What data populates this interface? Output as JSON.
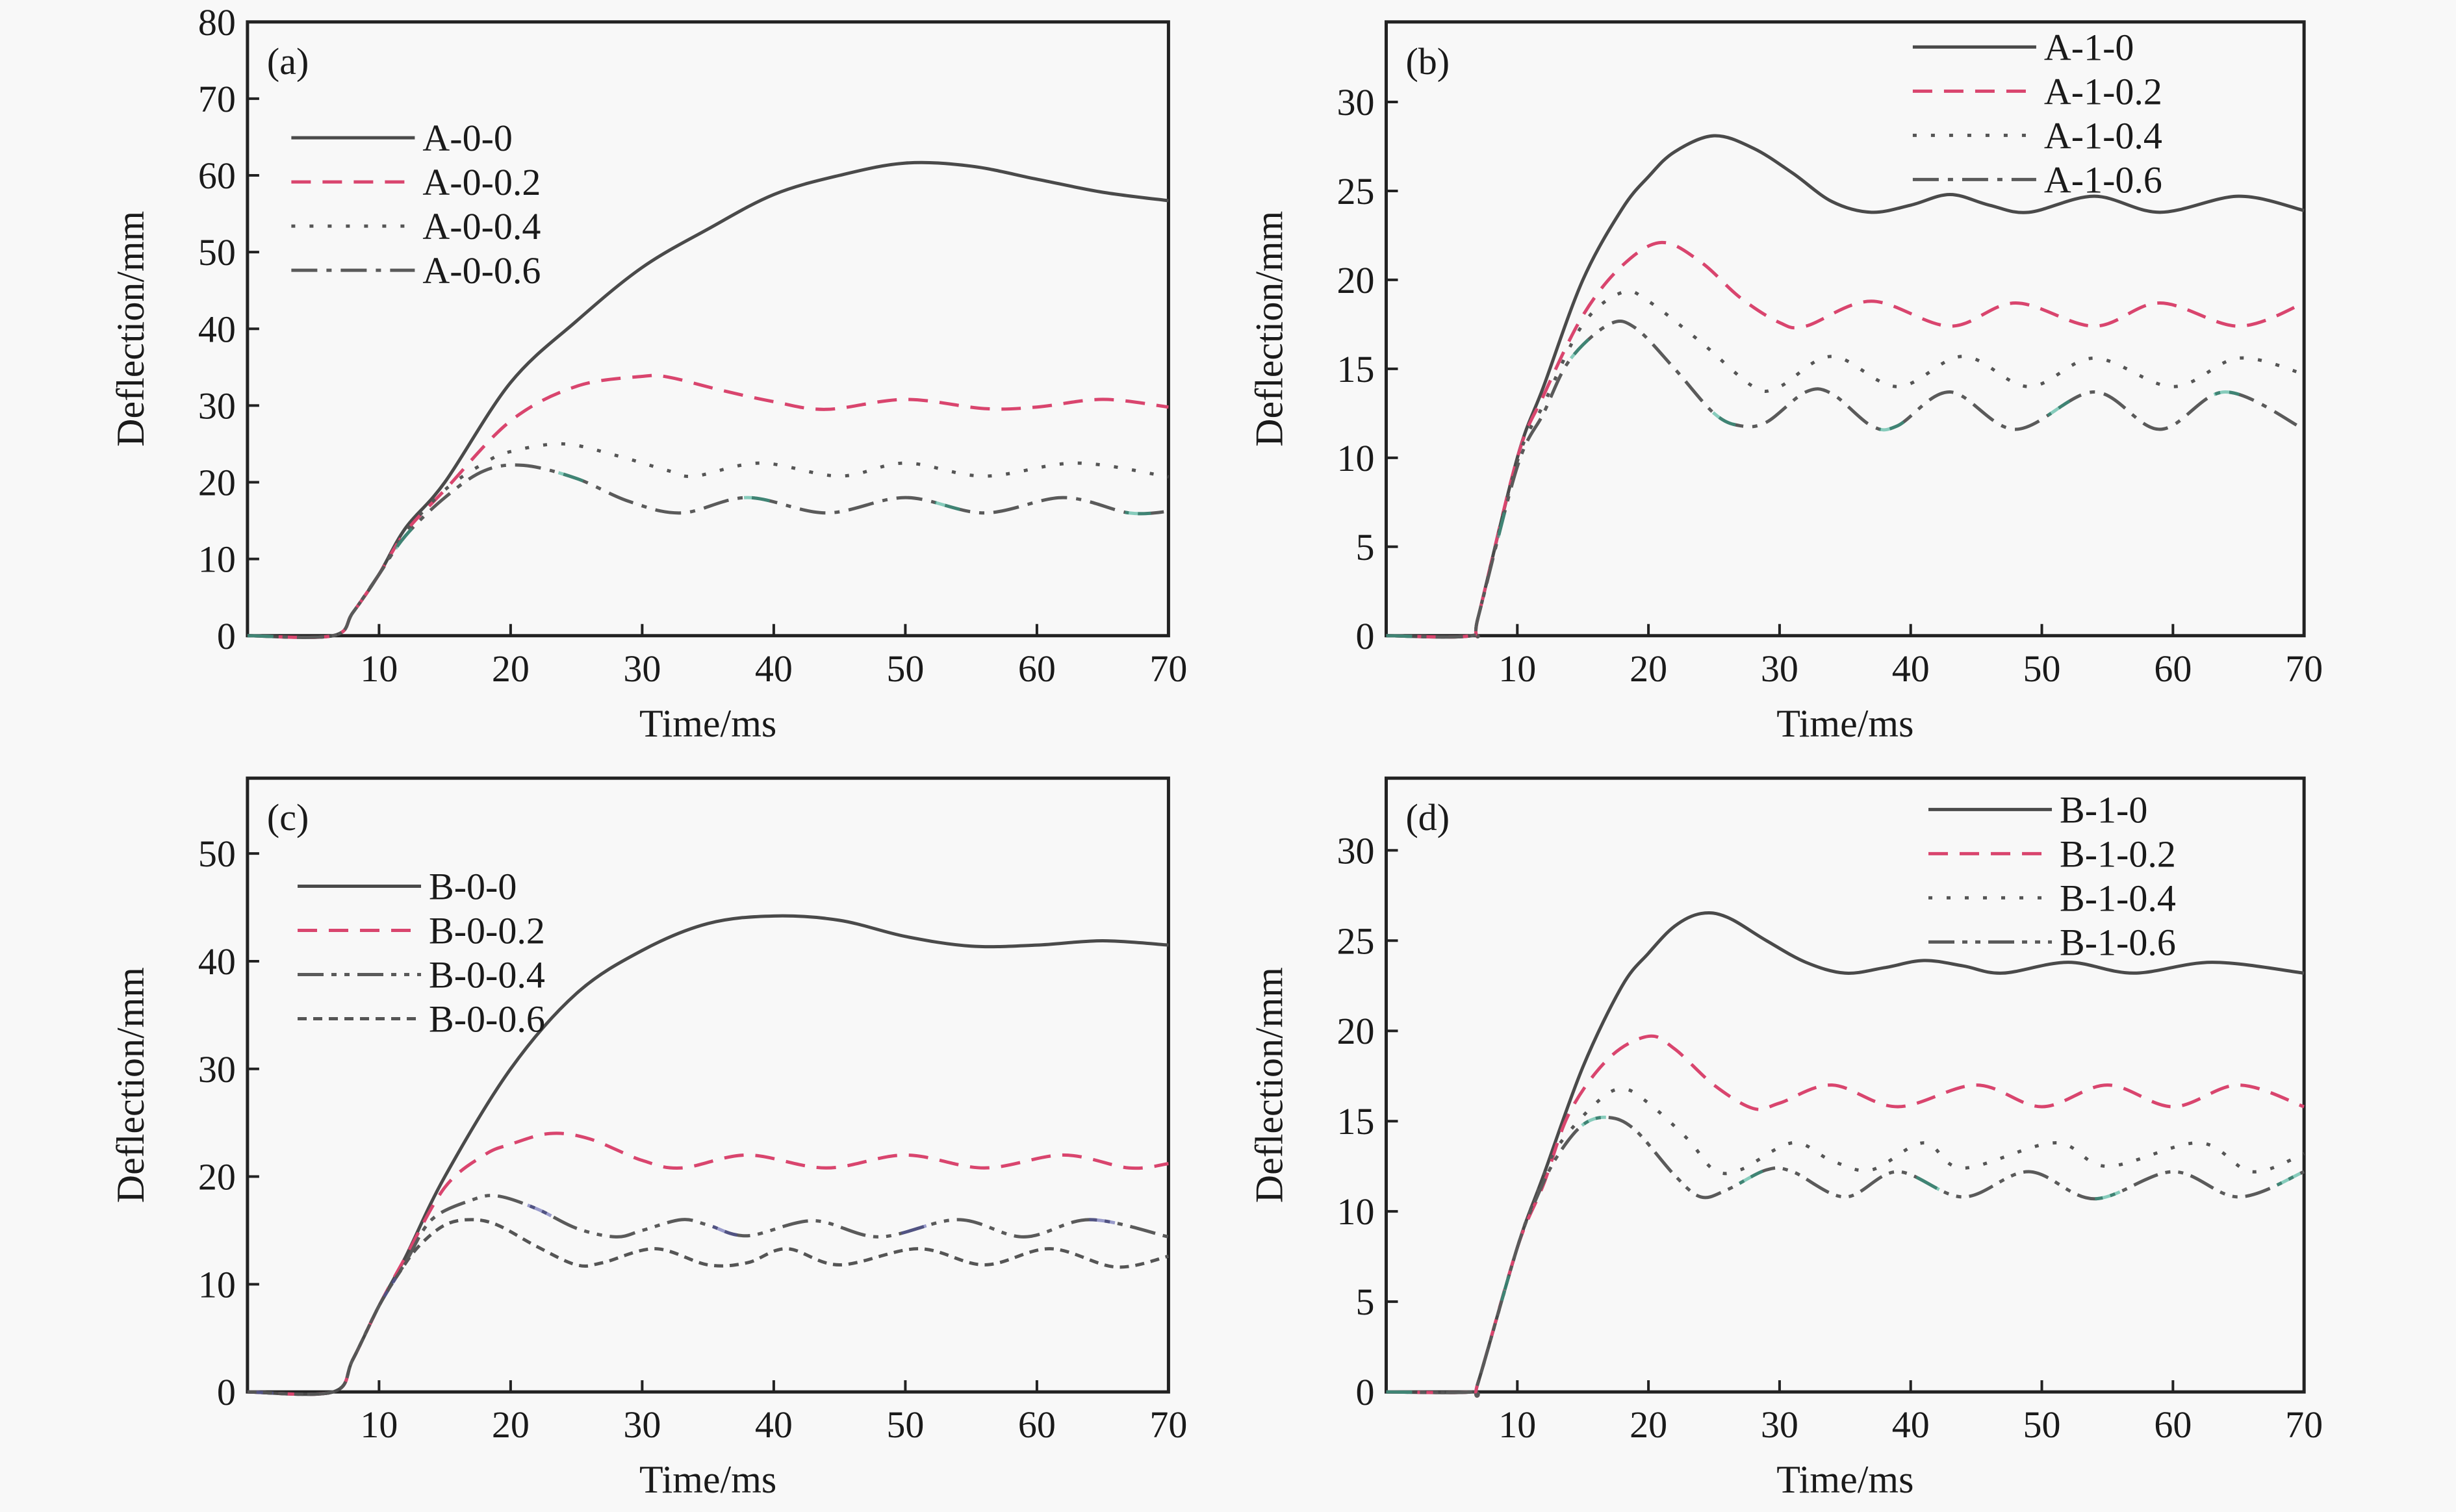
{
  "chart_data": [
    {
      "type": "line",
      "panel": "(a)",
      "xlabel": "Time/ms",
      "ylabel": "Deflection/mm",
      "xlim": [
        0,
        70
      ],
      "ylim": [
        0,
        80
      ],
      "xticks": [
        10,
        20,
        30,
        40,
        50,
        60,
        70
      ],
      "yticks": [
        0,
        10,
        20,
        30,
        40,
        50,
        60,
        70,
        80
      ],
      "grid": false,
      "legend_position": "top-left",
      "series": [
        {
          "name": "A-0-0",
          "style": "solid",
          "color": "#4a4a4a",
          "x": [
            0,
            6.5,
            8,
            10,
            12,
            15,
            20,
            25,
            30,
            35,
            40,
            45,
            50,
            55,
            60,
            65,
            70
          ],
          "y": [
            0,
            0,
            3,
            8,
            14,
            20,
            33,
            41,
            48,
            53,
            57.5,
            60,
            61.6,
            61.2,
            59.5,
            57.8,
            56.7
          ]
        },
        {
          "name": "A-0-0.2",
          "style": "dashed",
          "color": "#d9456e",
          "x": [
            0,
            6.5,
            8,
            10,
            12,
            15,
            20,
            25,
            30,
            32,
            36,
            40,
            44,
            50,
            56,
            60,
            65,
            70
          ],
          "y": [
            0,
            0,
            3,
            8,
            13.5,
            19,
            28,
            32.5,
            33.8,
            33.7,
            32,
            30.5,
            29.5,
            30.8,
            29.6,
            29.8,
            30.8,
            29.8
          ]
        },
        {
          "name": "A-0-0.4",
          "style": "dotted",
          "color": "#555555",
          "x": [
            0,
            6.5,
            8,
            10,
            12,
            15,
            18,
            20,
            24,
            28,
            32,
            34,
            39,
            45,
            50,
            56,
            63,
            70
          ],
          "y": [
            0,
            0,
            3,
            8,
            13.5,
            19,
            22.5,
            24,
            25,
            23.5,
            21.5,
            20.8,
            22.5,
            20.8,
            22.5,
            20.8,
            22.5,
            20.7
          ]
        },
        {
          "name": "A-0-0.6",
          "style": "dashdot",
          "color": "#5a5a5a",
          "accent_color": "#2aa88a",
          "x": [
            0,
            6.5,
            8,
            10,
            12,
            15,
            18,
            21,
            25,
            29,
            33,
            38,
            44,
            50,
            56,
            62,
            67,
            70
          ],
          "y": [
            0,
            0,
            3,
            8,
            13,
            18,
            21.5,
            22.2,
            20.5,
            17.5,
            16,
            18,
            16,
            18,
            16,
            18,
            16,
            16.2
          ]
        }
      ]
    },
    {
      "type": "line",
      "panel": "(b)",
      "xlabel": "Time/ms",
      "ylabel": "Deflection/mm",
      "xlim": [
        0,
        70
      ],
      "ylim": [
        0,
        34.5
      ],
      "xticks": [
        10,
        20,
        30,
        40,
        50,
        60,
        70
      ],
      "yticks": [
        0,
        5,
        10,
        15,
        20,
        25,
        30
      ],
      "grid": false,
      "legend_position": "top-right",
      "series": [
        {
          "name": "A-1-0",
          "style": "solid",
          "color": "#4a4a4a",
          "x": [
            0,
            6.5,
            7,
            10,
            12,
            15,
            18,
            20,
            22,
            25,
            28,
            31,
            34,
            37,
            40,
            43,
            46,
            49,
            54,
            59,
            65,
            70
          ],
          "y": [
            0,
            0,
            1,
            10,
            14,
            20,
            24,
            25.8,
            27.2,
            28.1,
            27.4,
            26,
            24.4,
            23.8,
            24.2,
            24.8,
            24.2,
            23.8,
            24.7,
            23.8,
            24.7,
            23.9
          ]
        },
        {
          "name": "A-1-0.2",
          "style": "dashed",
          "color": "#d9456e",
          "x": [
            0,
            6.5,
            7,
            10,
            12,
            15,
            18,
            21,
            24,
            27,
            30,
            32,
            37,
            43,
            48,
            54,
            59,
            65,
            70
          ],
          "y": [
            0,
            0,
            1,
            10,
            13.5,
            18,
            20.8,
            22.1,
            21,
            19,
            17.6,
            17.4,
            18.8,
            17.4,
            18.7,
            17.4,
            18.7,
            17.4,
            18.7
          ]
        },
        {
          "name": "A-1-0.4",
          "style": "dotted",
          "color": "#555555",
          "x": [
            0,
            6.5,
            7,
            10,
            12,
            15,
            18,
            20,
            24,
            28,
            30,
            34,
            39,
            44,
            49,
            54,
            60,
            65,
            70
          ],
          "y": [
            0,
            0,
            1,
            9.8,
            13,
            17.5,
            19.3,
            18.8,
            16.5,
            14,
            14,
            15.7,
            14,
            15.7,
            14,
            15.6,
            14,
            15.6,
            14.7
          ]
        },
        {
          "name": "A-1-0.6",
          "style": "dashdot",
          "color": "#5a5a5a",
          "accent_color": "#2aa88a",
          "x": [
            0,
            6.5,
            7,
            10,
            12,
            14,
            17,
            19,
            22,
            25,
            27,
            29,
            32,
            34,
            37,
            39,
            43,
            48,
            54,
            59,
            64,
            70
          ],
          "y": [
            0,
            0,
            1,
            9.5,
            12.5,
            15.5,
            17.5,
            17.3,
            15,
            12.5,
            11.8,
            12,
            13.7,
            13.6,
            11.8,
            11.8,
            13.7,
            11.6,
            13.7,
            11.6,
            13.7,
            11.6
          ]
        }
      ]
    },
    {
      "type": "line",
      "panel": "(c)",
      "xlabel": "Time/ms",
      "ylabel": "Deflection/mm",
      "xlim": [
        0,
        70
      ],
      "ylim": [
        0,
        57
      ],
      "xticks": [
        10,
        20,
        30,
        40,
        50,
        60,
        70
      ],
      "yticks": [
        0,
        10,
        20,
        30,
        40,
        50
      ],
      "grid": false,
      "legend_position": "top-left",
      "series": [
        {
          "name": "B-0-0",
          "style": "solid",
          "color": "#4a4a4a",
          "x": [
            0,
            6.5,
            8,
            10,
            12,
            15,
            20,
            25,
            30,
            35,
            40,
            45,
            50,
            55,
            60,
            65,
            70
          ],
          "y": [
            0,
            0,
            3,
            8,
            12.5,
            20,
            30,
            37,
            41,
            43.5,
            44.2,
            43.8,
            42.3,
            41.4,
            41.5,
            41.9,
            41.5
          ]
        },
        {
          "name": "B-0-0.2",
          "style": "dashed",
          "color": "#d9456e",
          "x": [
            0,
            6.5,
            8,
            10,
            12,
            15,
            18,
            20,
            23,
            26,
            30,
            33,
            38,
            44,
            50,
            56,
            62,
            67,
            70
          ],
          "y": [
            0,
            0,
            3,
            8,
            12.5,
            19,
            22,
            23,
            24,
            23.5,
            21.5,
            20.8,
            22,
            20.8,
            22,
            20.8,
            22,
            20.8,
            21.2
          ]
        },
        {
          "name": "B-0-0.4",
          "style": "dashdotdot",
          "color": "#5a5a5a",
          "accent_color": "#4b4fa6",
          "x": [
            0,
            6.5,
            8,
            10,
            12,
            14,
            17,
            19,
            22,
            25,
            28,
            30,
            33,
            35,
            38,
            43,
            48,
            54,
            59,
            64,
            70
          ],
          "y": [
            0,
            0,
            3,
            8,
            12,
            16,
            17.8,
            18.2,
            17,
            15.2,
            14.4,
            15,
            16,
            15.5,
            14.5,
            15.9,
            14.4,
            16,
            14.4,
            16,
            14.4
          ]
        },
        {
          "name": "B-0-0.6",
          "style": "shortdash",
          "color": "#555555",
          "x": [
            0,
            6.5,
            8,
            10,
            11.5,
            13,
            15,
            17,
            19,
            22,
            25,
            27,
            31,
            35,
            38,
            41,
            45,
            51,
            56,
            61,
            66,
            70
          ],
          "y": [
            0,
            0,
            3,
            8,
            11,
            13.5,
            15.5,
            16,
            15.5,
            13.5,
            11.8,
            12,
            13.3,
            11.8,
            12,
            13.3,
            11.8,
            13.3,
            11.8,
            13.3,
            11.6,
            12.6
          ]
        }
      ]
    },
    {
      "type": "line",
      "panel": "(d)",
      "xlabel": "Time/ms",
      "ylabel": "Deflection/mm",
      "xlim": [
        0,
        70
      ],
      "ylim": [
        0,
        34
      ],
      "xticks": [
        10,
        20,
        30,
        40,
        50,
        60,
        70
      ],
      "yticks": [
        0,
        5,
        10,
        15,
        20,
        25,
        30
      ],
      "grid": false,
      "legend_position": "top-right",
      "series": [
        {
          "name": "B-1-0",
          "style": "solid",
          "color": "#4a4a4a",
          "x": [
            0,
            6.5,
            7,
            10,
            12,
            15,
            18,
            20,
            22,
            24,
            26,
            29,
            32,
            35,
            38,
            41,
            44,
            47,
            52,
            57,
            63,
            70
          ],
          "y": [
            0,
            0,
            0.5,
            8,
            12,
            18,
            22.5,
            24.3,
            25.8,
            26.5,
            26.3,
            25,
            23.8,
            23.2,
            23.5,
            23.9,
            23.6,
            23.2,
            23.8,
            23.2,
            23.8,
            23.2
          ]
        },
        {
          "name": "B-1-0.2",
          "style": "dashed",
          "color": "#d9456e",
          "x": [
            0,
            6.5,
            7,
            10,
            12,
            14,
            17,
            20,
            22,
            25,
            28,
            30,
            34,
            39,
            45,
            50,
            55,
            60,
            65,
            70
          ],
          "y": [
            0,
            0,
            0.5,
            8,
            11.5,
            15.5,
            18.5,
            19.7,
            19,
            17,
            15.7,
            16,
            17,
            15.8,
            17,
            15.8,
            17,
            15.8,
            17,
            15.8
          ]
        },
        {
          "name": "B-1-0.4",
          "style": "dotted",
          "color": "#555555",
          "x": [
            0,
            6.5,
            7,
            10,
            11.5,
            13,
            16,
            18,
            20,
            23,
            25,
            27,
            31,
            34,
            37,
            41,
            44,
            51,
            55,
            62,
            66,
            70
          ],
          "y": [
            0,
            0,
            0.5,
            8,
            11,
            13.5,
            16,
            16.8,
            16,
            14,
            12.3,
            12.3,
            13.8,
            12.8,
            12.3,
            13.8,
            12.4,
            13.8,
            12.5,
            13.8,
            12.2,
            13.2
          ]
        },
        {
          "name": "B-1-0.6",
          "style": "dashdotdot",
          "color": "#5a5a5a",
          "accent_color": "#2aa88a",
          "x": [
            0,
            6.5,
            7,
            10,
            11.5,
            13,
            15,
            17,
            19,
            22,
            24,
            26,
            29,
            31,
            35,
            39,
            44,
            49,
            54,
            60,
            65,
            70
          ],
          "y": [
            0,
            0,
            0.5,
            8,
            10.8,
            13,
            14.8,
            15.2,
            14.5,
            12,
            10.8,
            11.2,
            12.3,
            12.2,
            10.8,
            12.2,
            10.8,
            12.2,
            10.7,
            12.2,
            10.8,
            12.2
          ]
        }
      ]
    }
  ]
}
